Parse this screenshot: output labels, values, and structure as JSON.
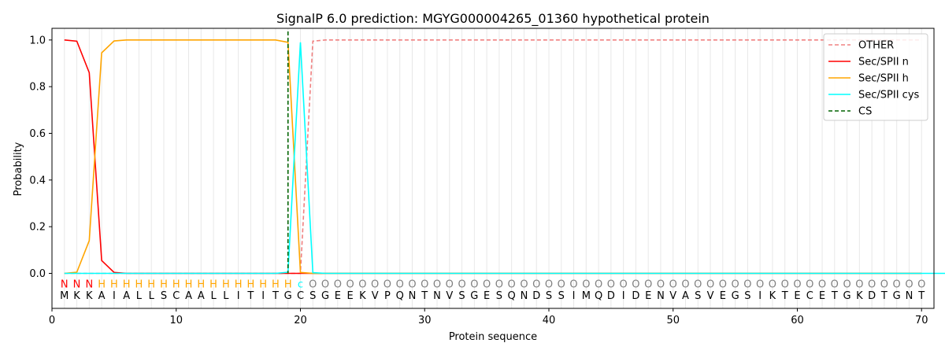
{
  "chart_data": {
    "type": "line",
    "title": "SignalP 6.0 prediction: MGYG000004265_01360 hypothetical protein",
    "xlabel": "Protein sequence",
    "ylabel": "Probability",
    "xlim": [
      0,
      71
    ],
    "ylim": [
      -0.15,
      1.05
    ],
    "xticks": [
      0,
      10,
      20,
      30,
      40,
      50,
      60,
      70
    ],
    "yticks": [
      0.0,
      0.2,
      0.4,
      0.6,
      0.8,
      1.0
    ],
    "ytick_labels": [
      "0.0",
      "0.2",
      "0.4",
      "0.6",
      "0.8",
      "1.0"
    ],
    "legend_position": "top-right",
    "sequence": [
      "M",
      "K",
      "K",
      "A",
      "I",
      "A",
      "L",
      "L",
      "S",
      "C",
      "A",
      "A",
      "L",
      "L",
      "I",
      "T",
      "I",
      "T",
      "G",
      "C",
      "S",
      "G",
      "E",
      "E",
      "K",
      "V",
      "P",
      "Q",
      "N",
      "T",
      "N",
      "V",
      "S",
      "G",
      "E",
      "S",
      "Q",
      "N",
      "D",
      "S",
      "S",
      "I",
      "M",
      "Q",
      "D",
      "I",
      "D",
      "E",
      "N",
      "V",
      "A",
      "S",
      "V",
      "E",
      "G",
      "S",
      "I",
      "K",
      "T",
      "E",
      "C",
      "E",
      "T",
      "G",
      "K",
      "D",
      "T",
      "G",
      "N",
      "T"
    ],
    "annotation": [
      "N",
      "N",
      "N",
      "H",
      "H",
      "H",
      "H",
      "H",
      "H",
      "H",
      "H",
      "H",
      "H",
      "H",
      "H",
      "H",
      "H",
      "H",
      "H",
      "c",
      "O",
      "O",
      "O",
      "O",
      "O",
      "O",
      "O",
      "O",
      "O",
      "O",
      "O",
      "O",
      "O",
      "O",
      "O",
      "O",
      "O",
      "O",
      "O",
      "O",
      "O",
      "O",
      "O",
      "O",
      "O",
      "O",
      "O",
      "O",
      "O",
      "O",
      "O",
      "O",
      "O",
      "O",
      "O",
      "O",
      "O",
      "O",
      "O",
      "O",
      "O",
      "O",
      "O",
      "O",
      "O",
      "O",
      "O",
      "O",
      "O",
      "O"
    ],
    "annotation_colors": {
      "N": "#ff0000",
      "H": "#ffa500",
      "c": "#00ffff",
      "O": "#808080"
    },
    "cleavage_site": 19,
    "series": [
      {
        "name": "OTHER",
        "color": "#f08080",
        "style": "dashed",
        "values": [
          0,
          0,
          0,
          0,
          0,
          0,
          0,
          0,
          0,
          0,
          0,
          0,
          0,
          0,
          0,
          0,
          0,
          0,
          0,
          0,
          0.995,
          1,
          1,
          1,
          1,
          1,
          1,
          1,
          1,
          1,
          1,
          1,
          1,
          1,
          1,
          1,
          1,
          1,
          1,
          1,
          1,
          1,
          1,
          1,
          1,
          1,
          1,
          1,
          1,
          1,
          1,
          1,
          1,
          1,
          1,
          1,
          1,
          1,
          1,
          1,
          1,
          1,
          1,
          1,
          1,
          1,
          1,
          1,
          1,
          1
        ]
      },
      {
        "name": "Sec/SPII n",
        "color": "#ff0000",
        "style": "solid",
        "values": [
          1.0,
          0.995,
          0.86,
          0.055,
          0.004,
          0,
          0,
          0,
          0,
          0,
          0,
          0,
          0,
          0,
          0,
          0,
          0,
          0,
          0,
          0,
          0,
          0,
          0,
          0,
          0,
          0,
          0,
          0,
          0,
          0,
          0,
          0,
          0,
          0,
          0,
          0,
          0,
          0,
          0,
          0,
          0,
          0,
          0,
          0,
          0,
          0,
          0,
          0,
          0,
          0,
          0,
          0,
          0,
          0,
          0,
          0,
          0,
          0,
          0,
          0,
          0,
          0,
          0,
          0,
          0,
          0,
          0,
          0,
          0,
          0
        ]
      },
      {
        "name": "Sec/SPII h",
        "color": "#ffa500",
        "style": "solid",
        "values": [
          0,
          0.005,
          0.14,
          0.945,
          0.996,
          1,
          1,
          1,
          1,
          1,
          1,
          1,
          1,
          1,
          1,
          1,
          1,
          1,
          0.99,
          0.004,
          0,
          0,
          0,
          0,
          0,
          0,
          0,
          0,
          0,
          0,
          0,
          0,
          0,
          0,
          0,
          0,
          0,
          0,
          0,
          0,
          0,
          0,
          0,
          0,
          0,
          0,
          0,
          0,
          0,
          0,
          0,
          0,
          0,
          0,
          0,
          0,
          0,
          0,
          0,
          0,
          0,
          0,
          0,
          0,
          0,
          0,
          0,
          0,
          0,
          0
        ]
      },
      {
        "name": "Sec/SPII cys",
        "color": "#00ffff",
        "style": "solid",
        "values": [
          0,
          0,
          0,
          0,
          0,
          0,
          0,
          0,
          0,
          0,
          0,
          0,
          0,
          0,
          0,
          0,
          0,
          0,
          0.005,
          0.99,
          0.003,
          0,
          0,
          0,
          0,
          0,
          0,
          0,
          0,
          0,
          0,
          0,
          0,
          0,
          0,
          0,
          0,
          0,
          0,
          0,
          0,
          0,
          0,
          0,
          0,
          0,
          0,
          0,
          0,
          0,
          0,
          0,
          0,
          0,
          0,
          0,
          0,
          0,
          0,
          0,
          0,
          0,
          0,
          0,
          0,
          0,
          0,
          0,
          0,
          0,
          0,
          0
        ]
      },
      {
        "name": "CS",
        "color": "#006400",
        "style": "dashed",
        "values": []
      }
    ]
  }
}
